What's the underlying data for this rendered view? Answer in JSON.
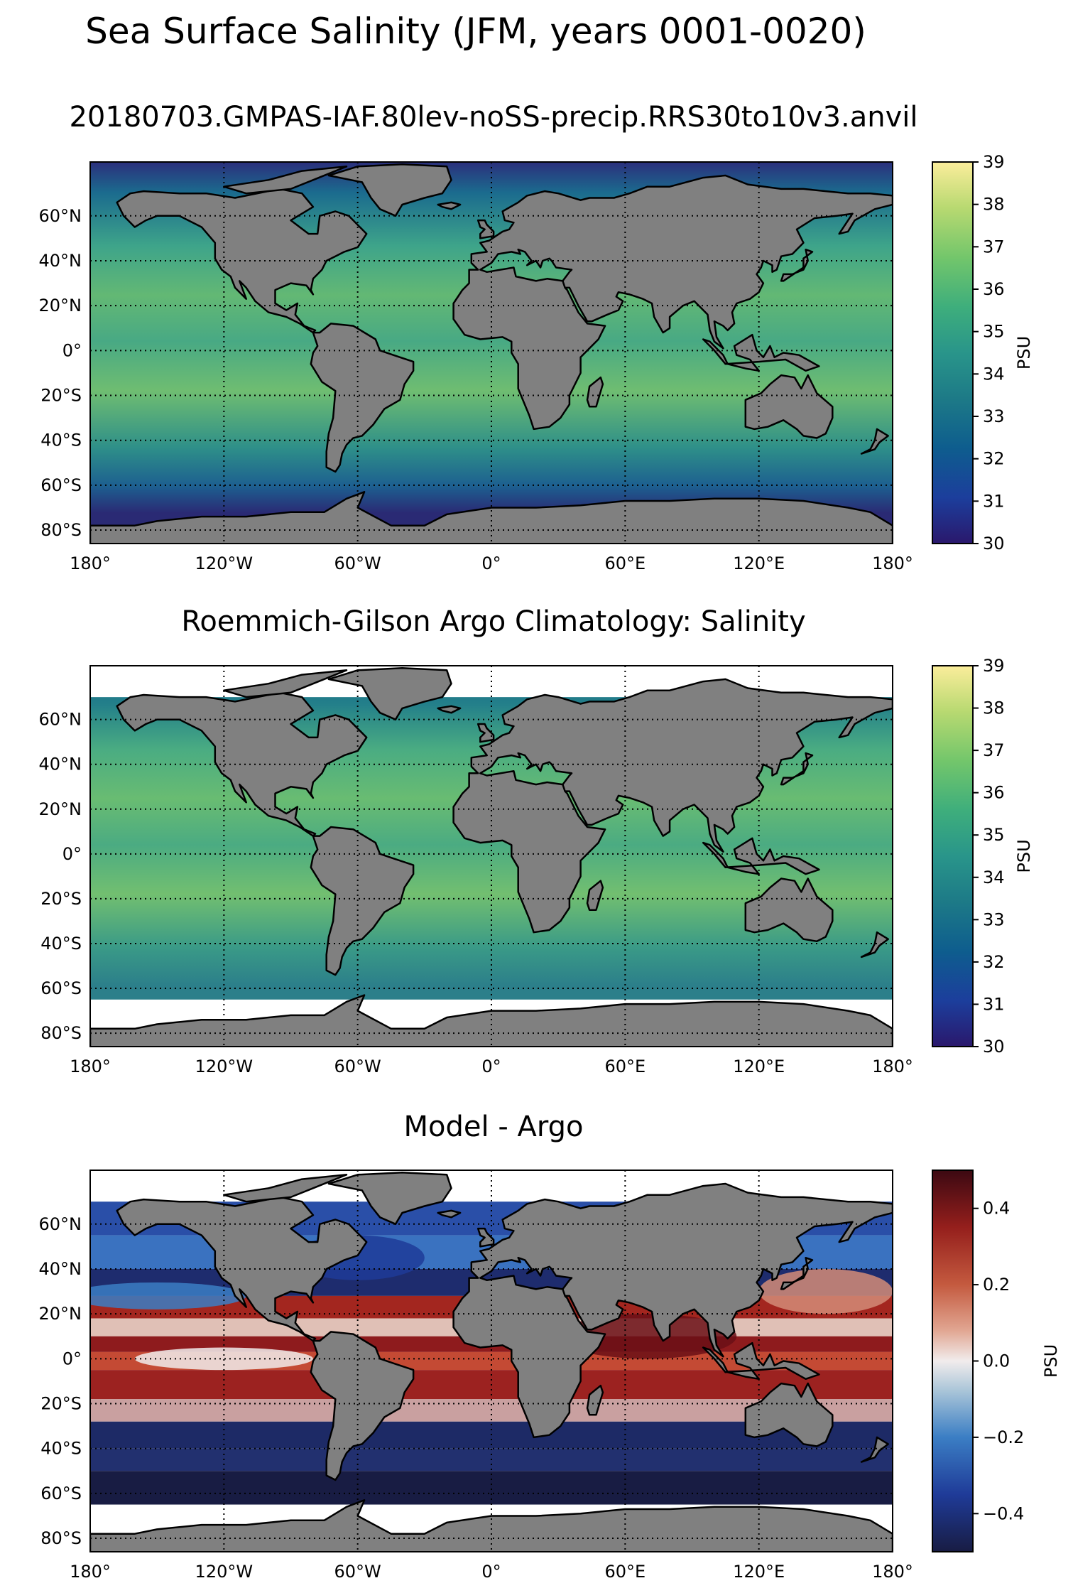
{
  "title": "Sea Surface Salinity (JFM, years 0001-0020)",
  "panels": [
    {
      "id": "model",
      "title": "20180703.GMPAS-IAF.80lev-noSS-precip.RRS30to10v3.anvil",
      "colorbar": {
        "label": "PSU",
        "min": 30,
        "max": 39,
        "ticks": [
          "39",
          "38",
          "37",
          "36",
          "35",
          "34",
          "33",
          "32",
          "31",
          "30"
        ],
        "colormap": "haline"
      }
    },
    {
      "id": "obs",
      "title": "Roemmich-Gilson Argo Climatology: Salinity",
      "colorbar": {
        "label": "PSU",
        "min": 30,
        "max": 39,
        "ticks": [
          "39",
          "38",
          "37",
          "36",
          "35",
          "34",
          "33",
          "32",
          "31",
          "30"
        ],
        "colormap": "haline"
      }
    },
    {
      "id": "diff",
      "title": "Model - Argo",
      "colorbar": {
        "label": "PSU",
        "min": -0.5,
        "max": 0.5,
        "ticks": [
          "0.4",
          "0.2",
          "0.0",
          "−0.2",
          "−0.4"
        ],
        "tick_values": [
          0.4,
          0.2,
          0.0,
          -0.2,
          -0.4
        ],
        "colormap": "balance"
      }
    }
  ],
  "lat_labels": [
    "60°N",
    "40°N",
    "20°N",
    "0°",
    "20°S",
    "40°S",
    "60°S",
    "80°S"
  ],
  "lon_labels": [
    "180°",
    "120°W",
    "60°W",
    "0°",
    "60°E",
    "120°E",
    "180°"
  ],
  "colors": {
    "land": "#808080",
    "haline_low": "#2a186c",
    "haline_high": "#fbed9b",
    "balance_low": "#181c43",
    "balance_high": "#3c0912"
  }
}
